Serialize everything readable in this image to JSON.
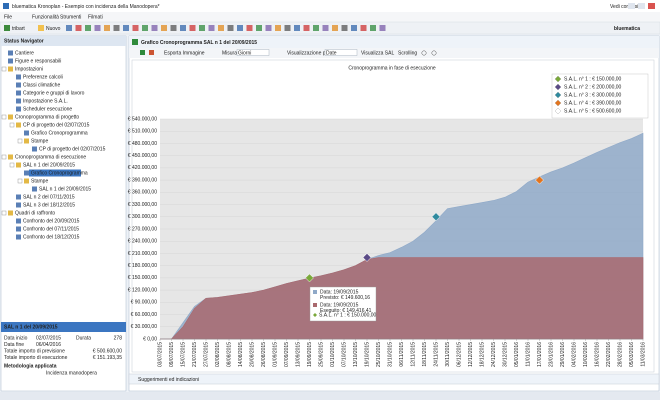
{
  "window": {
    "title": "bluematica Kronoplan - Esempio con incidenza della Manodopera*",
    "help": "Vedi come si fa",
    "brand": "bluematica"
  },
  "menu": [
    "File",
    "Funzionalità",
    "Strumenti",
    "Filmati"
  ],
  "toolbar": [
    "tribart",
    "Nuovo"
  ],
  "navigator": {
    "title": "Status Navigator",
    "nodes": [
      {
        "label": "Cantiere"
      },
      {
        "label": "Figure e responsabili"
      },
      {
        "label": "Impostazioni",
        "children": [
          {
            "label": "Preferenze calcoli"
          },
          {
            "label": "Classi climatiche"
          },
          {
            "label": "Categorie e gruppi di lavoro"
          },
          {
            "label": "Impostazione S.A.L."
          },
          {
            "label": "Scheduler esecuzione"
          }
        ]
      },
      {
        "label": "Cronoprogramma di progetto",
        "children": [
          {
            "label": "CP di progetto del 02/07/2015",
            "children": [
              {
                "label": "Grafico Cronoprogramma"
              },
              {
                "label": "Stampe",
                "children": [
                  {
                    "label": "CP di progetto del 02/07/2015"
                  }
                ]
              }
            ]
          }
        ]
      },
      {
        "label": "Cronoprogramma di esecuzione",
        "children": [
          {
            "label": "SAL n 1 del 20/09/2015",
            "children": [
              {
                "label": "Grafico Cronoprogramma",
                "selected": true
              },
              {
                "label": "Stampe",
                "children": [
                  {
                    "label": "SAL n 1 del 20/09/2015"
                  }
                ]
              }
            ]
          },
          {
            "label": "SAL n 2 del 07/11/2015"
          },
          {
            "label": "SAL n 3 del 18/12/2015"
          }
        ]
      },
      {
        "label": "Quadri di raffronto",
        "children": [
          {
            "label": "Confronto del 20/09/2015"
          },
          {
            "label": "Confronto del 07/11/2015"
          },
          {
            "label": "Confronto del 18/12/2015"
          }
        ]
      }
    ]
  },
  "info": {
    "title": "SAL n 1 del 20/09/2015",
    "rows": [
      [
        "Data inizio",
        "02/07/2015",
        "Durata",
        "278"
      ],
      [
        "Data fine",
        "06/04/2016"
      ],
      [
        "Totale importo di previsione",
        "€ 500.600,00"
      ],
      [
        "Totale importo di esecuzione",
        "€ 151.193,35"
      ]
    ],
    "method_label": "Metodologia applicata",
    "method": "Incidenza manodopera"
  },
  "panel": {
    "title": "Grafico Cronoprogramma SAL n 1 del 20/09/2015",
    "controls": [
      "Esporta Immagine",
      "Misura",
      "Giorni",
      "Visualizzazione per",
      "Date",
      "Visualizza SAL",
      "Scrolling"
    ],
    "footer": "Suggerimenti ed indicazioni"
  },
  "chart_data": {
    "type": "area",
    "title": "Cronoprogramma in fase di esecuzione",
    "categories": [
      "03/07/2015",
      "09/07/2015",
      "15/07/2015",
      "21/07/2015",
      "27/07/2015",
      "02/08/2015",
      "08/08/2015",
      "14/08/2015",
      "20/08/2015",
      "26/08/2015",
      "01/09/2015",
      "07/09/2015",
      "13/09/2015",
      "19/09/2015",
      "25/09/2015",
      "01/10/2015",
      "07/10/2015",
      "13/10/2015",
      "19/10/2015",
      "25/10/2015",
      "31/10/2015",
      "06/11/2015",
      "12/11/2015",
      "18/11/2015",
      "24/11/2015",
      "30/11/2015",
      "06/12/2015",
      "12/12/2015",
      "18/12/2015",
      "24/12/2015",
      "30/12/2015",
      "05/01/2016",
      "11/01/2016",
      "17/01/2016",
      "23/01/2016",
      "29/01/2016",
      "04/02/2016",
      "10/02/2016",
      "16/02/2016",
      "22/02/2016",
      "28/02/2016",
      "05/03/2016",
      "11/03/2016"
    ],
    "series": [
      {
        "name": "Previsto",
        "color": "#8fa9c8",
        "values": [
          0,
          0,
          40000,
          80000,
          100000,
          102000,
          106000,
          110000,
          114000,
          120000,
          128000,
          136000,
          143000,
          149600.16,
          155000,
          162000,
          170000,
          180000,
          195000,
          205000,
          212000,
          225000,
          240000,
          262000,
          290000,
          320000,
          325000,
          330000,
          335000,
          340000,
          348000,
          362000,
          385000,
          398000,
          410000,
          420000,
          432000,
          445000,
          458000,
          470000,
          482000,
          492000,
          505000
        ]
      },
      {
        "name": "Eseguito",
        "color": "#a9696e",
        "values": [
          0,
          0,
          30000,
          75000,
          100000,
          102000,
          106000,
          110000,
          114000,
          120000,
          128000,
          136000,
          143000,
          149416.41,
          155000,
          162000,
          170000,
          180000,
          195000,
          200000,
          200000,
          200000,
          200000,
          200000,
          200000,
          200000,
          200000,
          200000,
          200000,
          200000,
          200000,
          200000,
          200000,
          200000,
          200000,
          200000,
          200000,
          200000,
          200000,
          200000,
          200000,
          200000,
          200000
        ]
      }
    ],
    "markers": [
      {
        "label": "S.A.L. n° 1 : € 150.000,00",
        "color": "#7aa83a",
        "x": "19/09/2015",
        "value": 150000
      },
      {
        "label": "S.A.L. n° 2 : € 200.000,00",
        "color": "#5a4a86",
        "x": "19/10/2015",
        "value": 200000
      },
      {
        "label": "S.A.L. n° 3 : € 300.000,00",
        "color": "#2f8a9e",
        "x": "24/11/2015",
        "value": 300000
      },
      {
        "label": "S.A.L. n° 4 : € 390.000,00",
        "color": "#e2741e",
        "x": "17/01/2016",
        "value": 390000
      },
      {
        "label": "S.A.L. n° 5 : € 500.600,00",
        "color": "#ffffff"
      }
    ],
    "tooltip": [
      "Data: 19/09/2015",
      "Previsto: € 149.600,16",
      "Data: 19/09/2015",
      "Eseguito: € 149.416,41",
      "S.A.L. n° 1 : € 150.000,00"
    ],
    "ylim": [
      0,
      540000
    ],
    "yticks": [
      {
        "value": 0,
        "label": "€ 0,00"
      },
      {
        "value": 30000,
        "label": "€ 30.000,00"
      },
      {
        "value": 60000,
        "label": "€ 60.000,00"
      },
      {
        "value": 90000,
        "label": "€ 90.000,00"
      },
      {
        "value": 120000,
        "label": "€ 120.000,00"
      },
      {
        "value": 150000,
        "label": "€ 150.000,00"
      },
      {
        "value": 180000,
        "label": "€ 180.000,00"
      },
      {
        "value": 210000,
        "label": "€ 210.000,00"
      },
      {
        "value": 240000,
        "label": "€ 240.000,00"
      },
      {
        "value": 270000,
        "label": "€ 270.000,00"
      },
      {
        "value": 300000,
        "label": "€ 300.000,00"
      },
      {
        "value": 330000,
        "label": "€ 330.000,00"
      },
      {
        "value": 360000,
        "label": "€ 360.000,00"
      },
      {
        "value": 390000,
        "label": "€ 390.000,00"
      },
      {
        "value": 420000,
        "label": "€ 420.000,00"
      },
      {
        "value": 450000,
        "label": "€ 450.000,00"
      },
      {
        "value": 480000,
        "label": "€ 480.000,00"
      },
      {
        "value": 510000,
        "label": "€ 510.000,00"
      },
      {
        "value": 540000,
        "label": "€ 540.000,00"
      }
    ],
    "grid": true,
    "legend": "top-right"
  }
}
